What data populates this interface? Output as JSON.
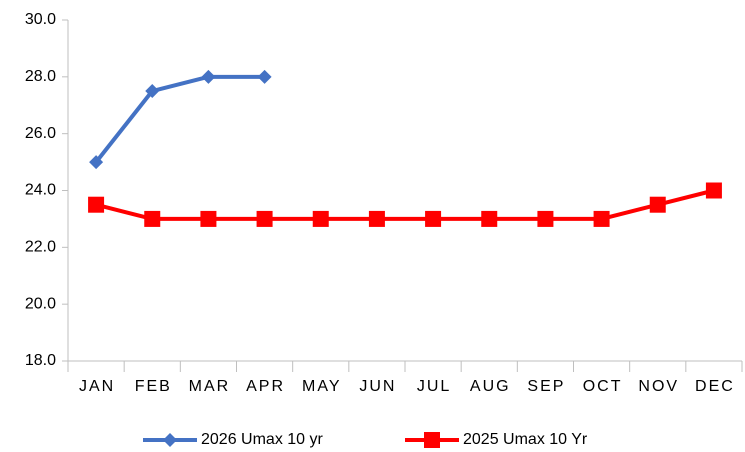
{
  "chart_data": {
    "type": "line",
    "categories": [
      "JAN",
      "FEB",
      "MAR",
      "APR",
      "MAY",
      "JUN",
      "JUL",
      "AUG",
      "SEP",
      "OCT",
      "NOV",
      "DEC"
    ],
    "series": [
      {
        "name": "2026 Umax 10 yr",
        "color": "#4472c4",
        "marker": "diamond",
        "values": [
          25,
          27.5,
          28,
          28,
          null,
          null,
          null,
          null,
          null,
          null,
          null,
          null
        ]
      },
      {
        "name": "2025 Umax 10 Yr",
        "color": "#ff0000",
        "marker": "square",
        "values": [
          23.5,
          23,
          23,
          23,
          23,
          23,
          23,
          23,
          23,
          23,
          23.5,
          24
        ]
      }
    ],
    "ylim": [
      18,
      30
    ],
    "yticks": [
      {
        "value": 18,
        "label": "18.0"
      },
      {
        "value": 20,
        "label": "20.0"
      },
      {
        "value": 22,
        "label": "22.0"
      },
      {
        "value": 24,
        "label": "24.0"
      },
      {
        "value": 26,
        "label": "26.0"
      },
      {
        "value": 28,
        "label": "28.0"
      },
      {
        "value": 30,
        "label": "30.0"
      }
    ],
    "grid": false,
    "legend": "bottom"
  }
}
